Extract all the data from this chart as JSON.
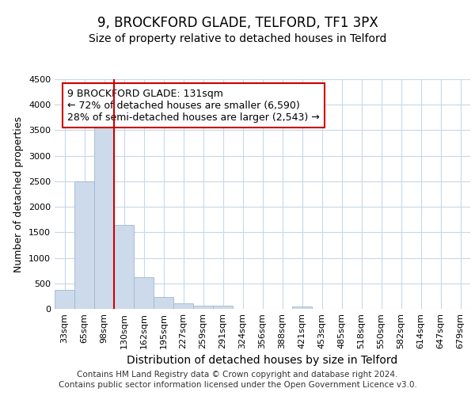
{
  "title": "9, BROCKFORD GLADE, TELFORD, TF1 3PX",
  "subtitle": "Size of property relative to detached houses in Telford",
  "xlabel": "Distribution of detached houses by size in Telford",
  "ylabel": "Number of detached properties",
  "categories": [
    "33sqm",
    "65sqm",
    "98sqm",
    "130sqm",
    "162sqm",
    "195sqm",
    "227sqm",
    "259sqm",
    "291sqm",
    "324sqm",
    "356sqm",
    "388sqm",
    "421sqm",
    "453sqm",
    "485sqm",
    "518sqm",
    "550sqm",
    "582sqm",
    "614sqm",
    "647sqm",
    "679sqm"
  ],
  "values": [
    380,
    2500,
    3750,
    1640,
    620,
    240,
    110,
    60,
    55,
    0,
    0,
    0,
    50,
    0,
    0,
    0,
    0,
    0,
    0,
    0,
    0
  ],
  "bar_color": "#ccdaeb",
  "bar_edge_color": "#a0b8d0",
  "vline_x": 2.5,
  "vline_color": "#cc0000",
  "annotation_title": "9 BROCKFORD GLADE: 131sqm",
  "annotation_line1": "← 72% of detached houses are smaller (6,590)",
  "annotation_line2": "28% of semi-detached houses are larger (2,543) →",
  "annotation_box_color": "#ffffff",
  "annotation_box_edge": "#cc0000",
  "ylim": [
    0,
    4500
  ],
  "yticks": [
    0,
    500,
    1000,
    1500,
    2000,
    2500,
    3000,
    3500,
    4000,
    4500
  ],
  "footer_line1": "Contains HM Land Registry data © Crown copyright and database right 2024.",
  "footer_line2": "Contains public sector information licensed under the Open Government Licence v3.0.",
  "background_color": "#ffffff",
  "grid_color": "#c8d8e8",
  "title_fontsize": 12,
  "subtitle_fontsize": 10,
  "xlabel_fontsize": 10,
  "ylabel_fontsize": 9,
  "tick_fontsize": 8,
  "annotation_fontsize": 9,
  "footer_fontsize": 7.5
}
